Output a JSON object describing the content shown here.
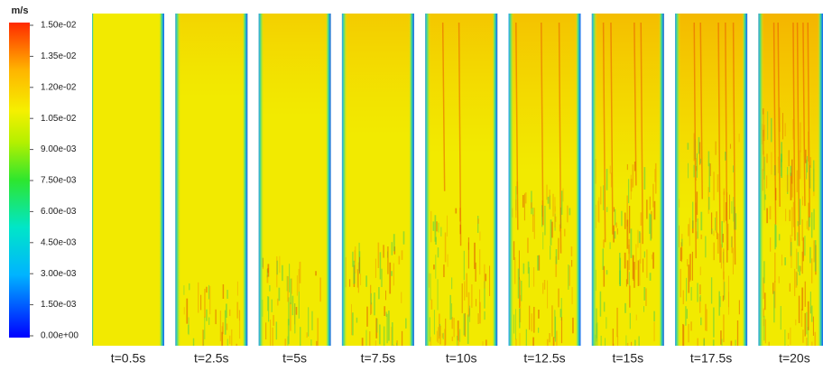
{
  "colorbar": {
    "unit": "m/s",
    "lim": [
      0,
      0.015
    ],
    "ticks": [
      {
        "value": 0.015,
        "label": "1.50e-02"
      },
      {
        "value": 0.0135,
        "label": "1.35e-02"
      },
      {
        "value": 0.012,
        "label": "1.20e-02"
      },
      {
        "value": 0.0105,
        "label": "1.05e-02"
      },
      {
        "value": 0.009,
        "label": "9.00e-03"
      },
      {
        "value": 0.0075,
        "label": "7.50e-03"
      },
      {
        "value": 0.006,
        "label": "6.00e-03"
      },
      {
        "value": 0.0045,
        "label": "4.50e-03"
      },
      {
        "value": 0.003,
        "label": "3.00e-03"
      },
      {
        "value": 0.0015,
        "label": "1.50e-03"
      },
      {
        "value": 0,
        "label": "0.00e+00"
      }
    ]
  },
  "panels": [
    {
      "label": "t=0.5s"
    },
    {
      "label": "t=2.5s"
    },
    {
      "label": "t=5s"
    },
    {
      "label": "t=7.5s"
    },
    {
      "label": "t=10s"
    },
    {
      "label": "t=12.5s"
    },
    {
      "label": "t=15s"
    },
    {
      "label": "t=17.5s"
    },
    {
      "label": "t=20s"
    }
  ]
}
